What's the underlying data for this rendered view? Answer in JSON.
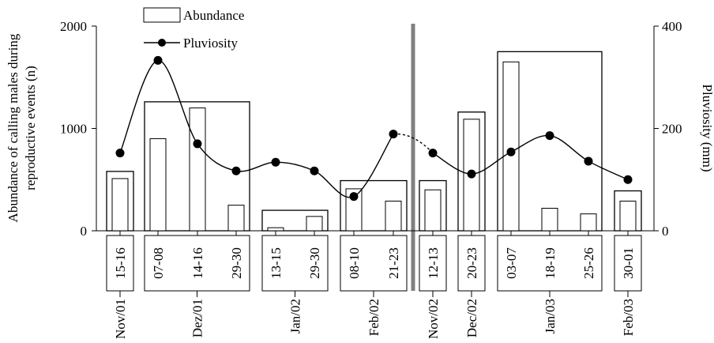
{
  "chart_data": {
    "type": "bar",
    "legend": {
      "abundance_label": "Abundance",
      "pluviosity_label": "Pluviosity",
      "placement": "top-left"
    },
    "left_axis": {
      "label_line1": "Abundance of calling males during",
      "label_line2": "reproductive events (n)",
      "ticks": [
        "0",
        "1000",
        "2000"
      ],
      "range": [
        0,
        2000
      ]
    },
    "right_axis": {
      "label": "Pluviosity (mm)",
      "ticks": [
        "0",
        "200",
        "400"
      ],
      "range": [
        0,
        400
      ]
    },
    "events": [
      {
        "label": "15-16",
        "abundance": 510,
        "pluviosity": 152
      },
      {
        "label": "07-08",
        "abundance": 900,
        "pluviosity": 333
      },
      {
        "label": "14-16",
        "abundance": 1200,
        "pluviosity": 170
      },
      {
        "label": "29-30",
        "abundance": 250,
        "pluviosity": 117
      },
      {
        "label": "13-15",
        "abundance": 30,
        "pluviosity": 134
      },
      {
        "label": "29-30",
        "abundance": 140,
        "pluviosity": 117
      },
      {
        "label": "08-10",
        "abundance": 410,
        "pluviosity": 67
      },
      {
        "label": "21-23",
        "abundance": 290,
        "pluviosity": 189
      },
      {
        "label": "12-13",
        "abundance": 400,
        "pluviosity": 152
      },
      {
        "label": "20-23",
        "abundance": 1090,
        "pluviosity": 111
      },
      {
        "label": "03-07",
        "abundance": 1650,
        "pluviosity": 154
      },
      {
        "label": "18-19",
        "abundance": 220,
        "pluviosity": 186
      },
      {
        "label": "25-26",
        "abundance": 165,
        "pluviosity": 136
      },
      {
        "label": "30-01",
        "abundance": 290,
        "pluviosity": 100
      }
    ],
    "months": [
      {
        "label": "Nov/01",
        "abundance": 580,
        "first": 0,
        "last": 0
      },
      {
        "label": "Dez/01",
        "abundance": 1260,
        "first": 1,
        "last": 3
      },
      {
        "label": "Jan/02",
        "abundance": 200,
        "first": 4,
        "last": 5
      },
      {
        "label": "Feb/02",
        "abundance": 490,
        "first": 6,
        "last": 7
      },
      {
        "label": "Nov/02",
        "abundance": 490,
        "first": 8,
        "last": 8
      },
      {
        "label": "Dec/02",
        "abundance": 1160,
        "first": 9,
        "last": 9
      },
      {
        "label": "Jan/03",
        "abundance": 1750,
        "first": 10,
        "last": 12
      },
      {
        "label": "Feb/03",
        "abundance": 390,
        "first": 13,
        "last": 13
      }
    ],
    "season_break_after_event": 7,
    "colors": {
      "line": "#000000",
      "bars": "#ffffff",
      "outline": "#000000",
      "divider": "#555555"
    }
  }
}
